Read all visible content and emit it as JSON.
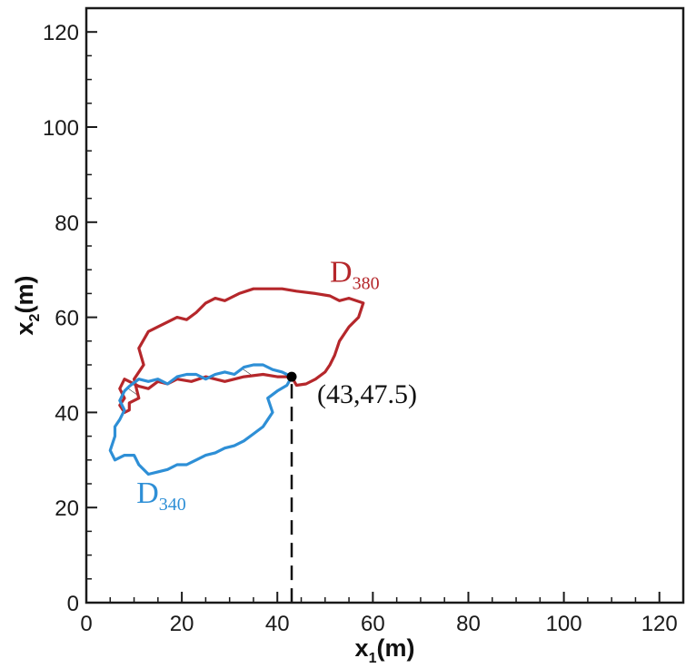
{
  "chart_data": {
    "type": "line",
    "title": "",
    "xlabel": {
      "main": "x",
      "sub": "1",
      "unit": "(m)"
    },
    "ylabel": {
      "main": "x",
      "sub": "2",
      "unit": "(m)"
    },
    "xlim": [
      0,
      125
    ],
    "ylim": [
      0,
      125
    ],
    "xticks": [
      0,
      20,
      40,
      60,
      80,
      100,
      120
    ],
    "yticks": [
      0,
      20,
      40,
      60,
      80,
      100,
      120
    ],
    "minor_tick_step": 5,
    "grid": false,
    "series": [
      {
        "name": "D",
        "sub": "380",
        "color": "#b5272b",
        "closed": true,
        "x": [
          43,
          40,
          37,
          33,
          29,
          25,
          22,
          19,
          17,
          15,
          13,
          11,
          8,
          7,
          8,
          7,
          8,
          9,
          9,
          11,
          10,
          12,
          11,
          13,
          15,
          17,
          19,
          21,
          23,
          25,
          27,
          29,
          32,
          35,
          37,
          39,
          41,
          44,
          48,
          51,
          53,
          55,
          58,
          57,
          55,
          53,
          52,
          51,
          50,
          48,
          46,
          44
        ],
        "y": [
          47.5,
          47.5,
          48,
          47.5,
          46.5,
          47.5,
          46.5,
          47,
          46,
          46.5,
          45,
          45.5,
          47,
          45,
          43,
          41.5,
          40,
          40.5,
          42,
          43,
          47,
          50,
          53.5,
          57,
          58,
          59,
          60,
          59.5,
          61,
          63,
          64,
          63.5,
          65,
          66,
          66,
          66,
          66,
          65.5,
          65,
          64.5,
          63.5,
          64,
          63,
          60,
          58,
          55,
          52,
          50,
          48.5,
          47,
          46,
          45.7
        ]
      },
      {
        "name": "D",
        "sub": "340",
        "color": "#2e8fd6",
        "closed": true,
        "x": [
          43,
          41,
          39,
          37,
          35,
          33,
          31,
          29,
          27,
          25,
          23,
          21,
          19,
          17,
          15,
          13,
          11,
          9,
          8,
          7,
          8,
          7,
          6,
          6,
          5,
          6,
          8,
          10,
          11,
          13,
          15,
          17,
          19,
          21,
          23,
          25,
          27,
          29,
          31,
          33,
          35,
          37,
          38,
          39,
          38,
          40,
          42
        ],
        "y": [
          47.5,
          48.5,
          49,
          50,
          50,
          49.5,
          48,
          48.5,
          48,
          47,
          48,
          48,
          47.5,
          46,
          47,
          46.5,
          47,
          45.5,
          44.5,
          42.5,
          40.5,
          38.5,
          37,
          35,
          32,
          30,
          31,
          31,
          29,
          27,
          27.5,
          28,
          29,
          29,
          30,
          31,
          31.5,
          32.5,
          33,
          34,
          35.5,
          37,
          38.5,
          40,
          43,
          44.5,
          45.7
        ]
      }
    ],
    "annotation": {
      "label": "(43,47.5)",
      "x": 43,
      "y": 47.5
    }
  },
  "colors": {
    "axes": "#1a1a1a",
    "d380": "#b5272b",
    "d340": "#2e8fd6",
    "hatch": "#111111"
  }
}
